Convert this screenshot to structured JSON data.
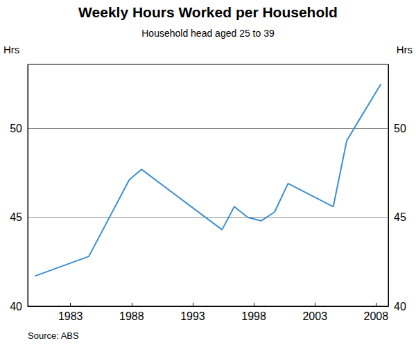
{
  "chart_data": {
    "type": "line",
    "title": "Weekly Hours Worked per Household",
    "subtitle": "Household head aged 25 to 39",
    "ylabel": "Hrs",
    "source": "Source: ABS",
    "x": [
      1980.1,
      1984.5,
      1987.8,
      1988.8,
      1995.4,
      1996.4,
      1997.5,
      1998.6,
      1999.7,
      2000.8,
      2004.5,
      2005.6,
      2006.2,
      2008.4
    ],
    "values": [
      41.7,
      42.8,
      47.1,
      47.7,
      44.3,
      45.6,
      45.0,
      44.8,
      45.3,
      46.9,
      45.6,
      49.3,
      50.0,
      52.5
    ],
    "color": "#3d8fd0",
    "xlim": [
      1979.5,
      2009
    ],
    "xticks": [
      1983,
      1988,
      1993,
      1998,
      2003,
      2008
    ],
    "ylim": [
      40,
      53.6
    ],
    "yticks": [
      40,
      45,
      50
    ],
    "grid": true
  }
}
